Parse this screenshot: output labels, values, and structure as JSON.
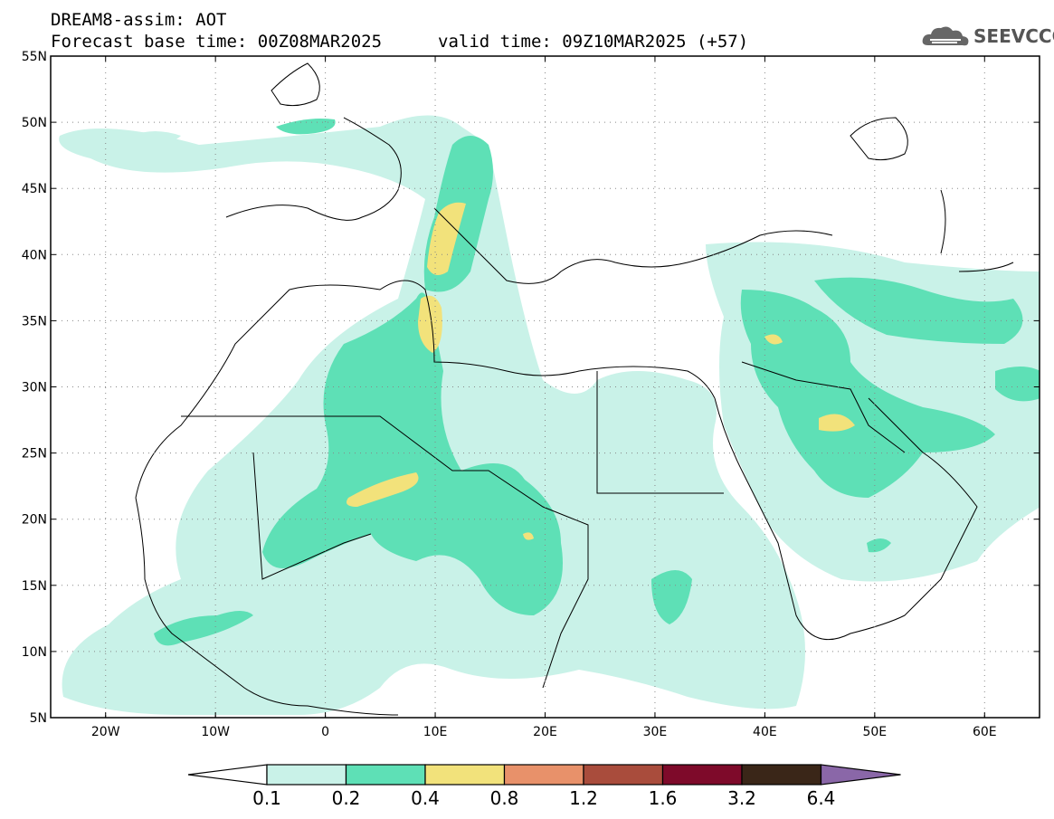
{
  "header": {
    "title": "DREAM8-assim: AOT",
    "base_time": "Forecast base time: 00Z08MAR2025",
    "valid_time": "valid time: 09Z10MAR2025 (+57)"
  },
  "logo": {
    "text": "SEEVCCC",
    "icon": "cloud-icon"
  },
  "axes": {
    "lat_labels": [
      "55N",
      "50N",
      "45N",
      "40N",
      "35N",
      "30N",
      "25N",
      "20N",
      "15N",
      "10N",
      "5N"
    ],
    "lat_values": [
      55,
      50,
      45,
      40,
      35,
      30,
      25,
      20,
      15,
      10,
      5
    ],
    "lon_labels": [
      "20W",
      "10W",
      "0",
      "10E",
      "20E",
      "30E",
      "40E",
      "50E",
      "60E"
    ],
    "lon_values": [
      -20,
      -10,
      0,
      10,
      20,
      30,
      40,
      50,
      60
    ],
    "lon_range": [
      -25,
      65
    ],
    "lat_range": [
      5,
      55
    ],
    "grid": "dotted"
  },
  "colorbar": {
    "labels": [
      "0.1",
      "0.2",
      "0.4",
      "0.8",
      "1.2",
      "1.6",
      "3.2",
      "6.4"
    ],
    "colors": [
      "#c9f2e8",
      "#5ee0b6",
      "#f2e27b",
      "#e8916a",
      "#a94c3c",
      "#7e0a2a",
      "#3a2618",
      "#8a67a8"
    ],
    "extend": "both"
  },
  "field_colors": {
    "low": "#c9f2e8",
    "mid": "#5ee0b6",
    "high": "#f2e27b"
  }
}
